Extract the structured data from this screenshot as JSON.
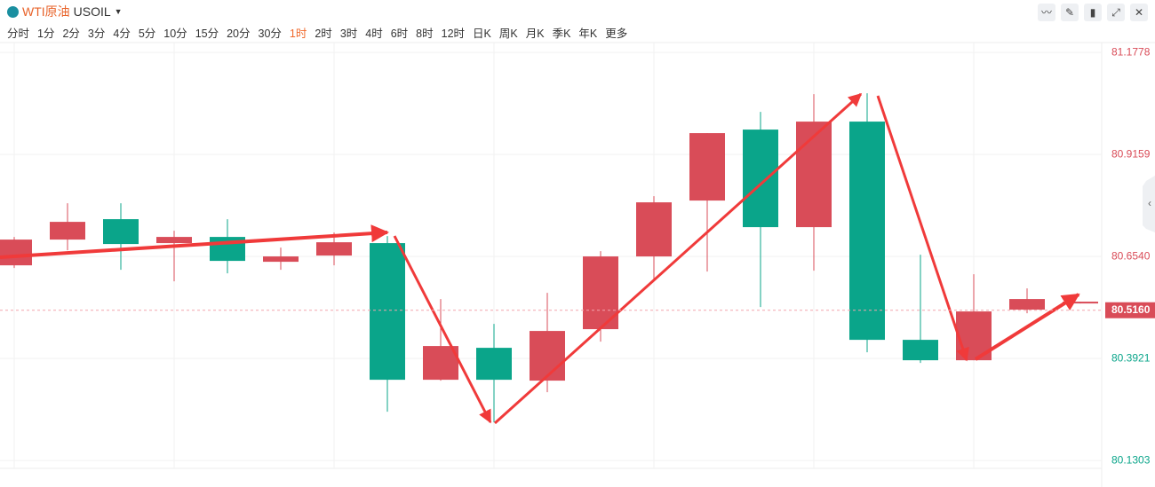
{
  "header": {
    "name": "WTI原油",
    "symbol": "USOIL"
  },
  "periods": [
    "分时",
    "1分",
    "2分",
    "3分",
    "4分",
    "5分",
    "10分",
    "15分",
    "20分",
    "30分",
    "1时",
    "2时",
    "3时",
    "4时",
    "6时",
    "8时",
    "12时",
    "日K",
    "周K",
    "月K",
    "季K",
    "年K",
    "更多"
  ],
  "active_period": 10,
  "chart_data": {
    "type": "candlestick",
    "open": [
      80.6313,
      80.6974,
      80.7498,
      80.6883,
      80.7042,
      80.6404,
      80.6564,
      80.6883,
      80.3375,
      80.4195,
      80.3353,
      80.4674,
      80.6541,
      80.7976,
      80.9798,
      80.7293,
      81.0003,
      80.44,
      80.3876,
      80.5175,
      80.5334
    ],
    "high": [
      80.7042,
      80.7907,
      80.7907,
      80.7201,
      80.7498,
      80.6769,
      80.7156,
      80.7065,
      80.5448,
      80.481,
      80.5607,
      80.6678,
      80.809,
      80.9707,
      81.0253,
      81.0709,
      81.0731,
      80.6587,
      80.6085,
      80.5721,
      80.538
    ],
    "low": [
      80.6245,
      80.67,
      80.6199,
      80.5903,
      80.6108,
      80.6199,
      80.6313,
      80.2556,
      80.3353,
      80.2282,
      80.3057,
      80.4355,
      80.5903,
      80.6154,
      80.5243,
      80.6177,
      80.4081,
      80.3808,
      80.3876,
      80.5083,
      80.5334
    ],
    "close": [
      80.6974,
      80.7429,
      80.686,
      80.7042,
      80.6427,
      80.6541,
      80.6905,
      80.3375,
      80.4241,
      80.3375,
      80.4628,
      80.6541,
      80.793,
      80.9707,
      80.7293,
      81.0003,
      80.44,
      80.3876,
      80.5129,
      80.5448,
      80.538
    ],
    "up_color": "#d94c58",
    "down_color": "#0aa58a",
    "ylim": [
      80.11,
      81.21
    ],
    "yticks": [
      81.1778,
      80.9159,
      {
        "value": 80.654,
        "label": "80.6540"
      },
      80.3921,
      80.1303
    ],
    "last_price": {
      "value": 80.516,
      "label": "80.5160"
    },
    "grid": true
  }
}
